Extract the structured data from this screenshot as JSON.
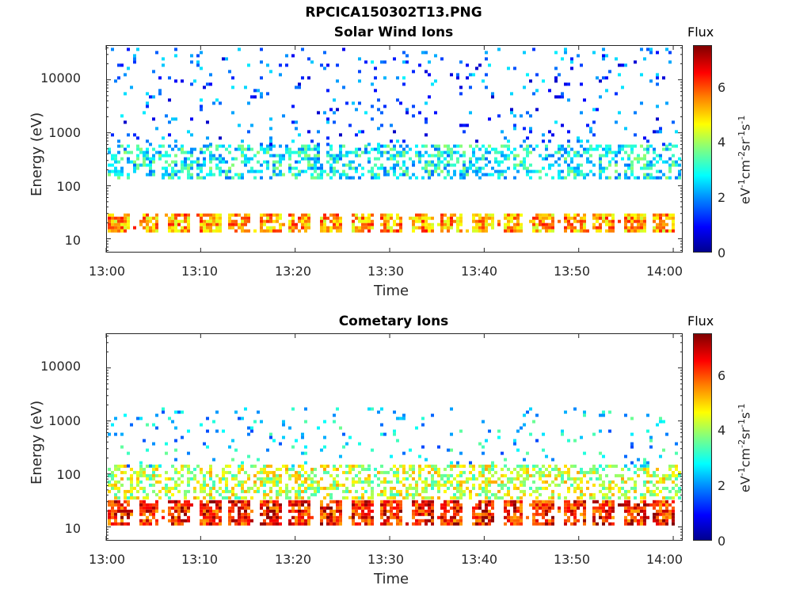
{
  "figure": {
    "filename": "RPCICA150302T13.PNG"
  },
  "colorbar": {
    "label": "Flux",
    "units_text": "eV-1cm-2sr-1s-1",
    "ticks": [
      "0",
      "2",
      "4",
      "6"
    ],
    "range": [
      0,
      7.4
    ],
    "colormap": "jet"
  },
  "chart_data": [
    {
      "type": "heatmap",
      "title": "Solar Wind Ions",
      "xlabel": "Time",
      "ylabel": "Energy (eV)",
      "x_ticks": [
        "13:00",
        "13:10",
        "13:20",
        "13:30",
        "13:40",
        "13:50",
        "14:00"
      ],
      "y_ticks": [
        "10",
        "100",
        "1000",
        "10000"
      ],
      "y_scale": "log",
      "ylim": [
        5.5,
        45000
      ],
      "xlim": [
        "13:00",
        "14:01"
      ],
      "bands": [
        {
          "emin": 14,
          "emax": 30,
          "flux": 5.3
        },
        {
          "emin": 150,
          "emax": 600,
          "flux": 2.8
        },
        {
          "emin": 600,
          "emax": 40000,
          "flux": 1.6
        }
      ]
    },
    {
      "type": "heatmap",
      "title": "Cometary Ions",
      "xlabel": "Time",
      "ylabel": "Energy (eV)",
      "x_ticks": [
        "13:00",
        "13:10",
        "13:20",
        "13:30",
        "13:40",
        "13:50",
        "14:00"
      ],
      "y_ticks": [
        "10",
        "100",
        "1000",
        "10000"
      ],
      "y_scale": "log",
      "ylim": [
        5.5,
        45000
      ],
      "xlim": [
        "13:00",
        "14:01"
      ],
      "bands": [
        {
          "emin": 12,
          "emax": 32,
          "flux": 6.3
        },
        {
          "emin": 35,
          "emax": 150,
          "flux": 4.2
        },
        {
          "emin": 150,
          "emax": 1800,
          "flux": 2.5
        }
      ]
    }
  ]
}
